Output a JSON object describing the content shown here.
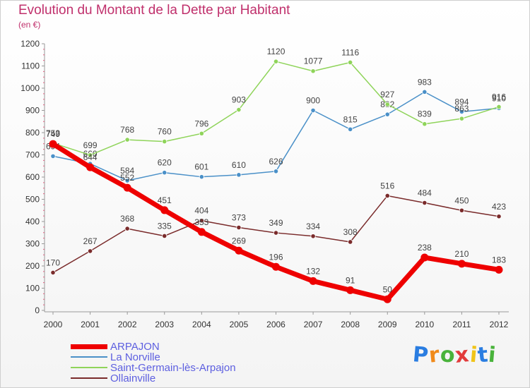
{
  "header": {
    "title": "Evolution du Montant de la Dette par Habitant",
    "subtitle": "(en €)"
  },
  "brand": {
    "text": "Proxiti",
    "letters": [
      "P",
      "r",
      "o",
      "x",
      "i",
      "t",
      "i"
    ],
    "colors": [
      "#2a7de1",
      "#f08a1a",
      "#49b33b",
      "#e23b3b",
      "#f0c419",
      "#2a7de1",
      "#49b33b"
    ]
  },
  "chart_data": {
    "type": "line",
    "title": "Evolution du Montant de la Dette par Habitant",
    "subtitle": "(en €)",
    "x": [
      "2000",
      "2001",
      "2002",
      "2003",
      "2004",
      "2005",
      "2006",
      "2007",
      "2008",
      "2009",
      "2010",
      "2011",
      "2012"
    ],
    "ylim": [
      0,
      1200
    ],
    "yticks": [
      "0",
      "100",
      "200",
      "300",
      "400",
      "500",
      "600",
      "700",
      "800",
      "900",
      "1000",
      "1100",
      "1200"
    ],
    "grid": false,
    "legend_position": "bottom-left",
    "series": [
      {
        "name": "La Norville",
        "color": "#4a90c8",
        "values": [
          694,
          660,
          584,
          620,
          601,
          610,
          626,
          900,
          815,
          882,
          983,
          894,
          910
        ],
        "labels": [
          "694",
          "660",
          "584",
          "620",
          "601",
          "610",
          "626",
          "900",
          "815",
          "882",
          "983",
          "894",
          "910"
        ]
      },
      {
        "name": "Saint-Germain-lès-Arpajon",
        "color": "#8fd45a",
        "values": [
          753,
          699,
          768,
          760,
          796,
          903,
          1120,
          1077,
          1116,
          927,
          839,
          863,
          916
        ],
        "labels": [
          "753",
          "699",
          "768",
          "760",
          "796",
          "903",
          "1120",
          "1077",
          "1116",
          "927",
          "839",
          "863",
          "916"
        ]
      },
      {
        "name": "Ollainville",
        "color": "#7a2b2b",
        "values": [
          170,
          267,
          368,
          335,
          404,
          373,
          349,
          334,
          308,
          516,
          484,
          450,
          423
        ],
        "labels": [
          "170",
          "267",
          "368",
          "335",
          "404",
          "373",
          "349",
          "334",
          "308",
          "516",
          "484",
          "450",
          "423"
        ]
      },
      {
        "name": "ARPAJON",
        "color": "#ee0000",
        "values": [
          749,
          644,
          552,
          451,
          353,
          269,
          196,
          132,
          91,
          50,
          238,
          210,
          183
        ],
        "labels": [
          "749",
          "644",
          "552",
          "451",
          "353",
          "269",
          "196",
          "132",
          "91",
          "50",
          "238",
          "210",
          "183"
        ]
      }
    ]
  },
  "legend": [
    {
      "name": "ARPAJON",
      "color": "#ee0000",
      "thickness": 7
    },
    {
      "name": "La Norville",
      "color": "#4a90c8",
      "thickness": 2
    },
    {
      "name": "Saint-Germain-lès-Arpajon",
      "color": "#8fd45a",
      "thickness": 2
    },
    {
      "name": "Ollainville",
      "color": "#7a2b2b",
      "thickness": 2
    }
  ]
}
